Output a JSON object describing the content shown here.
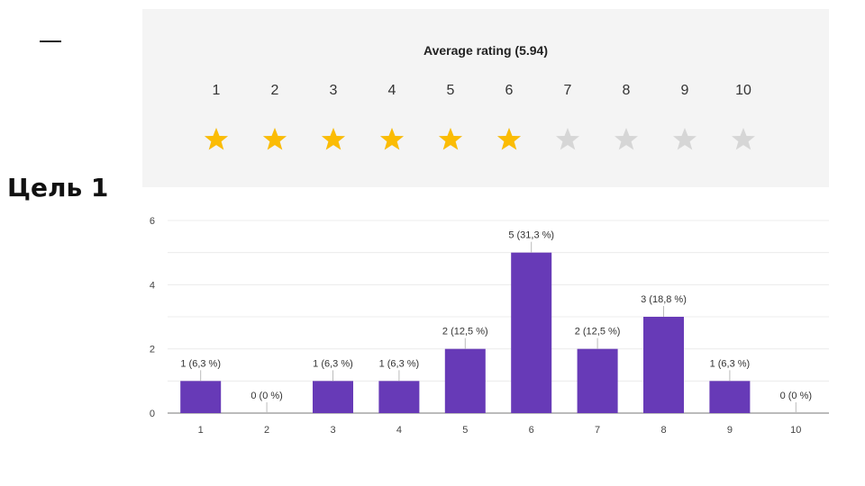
{
  "goal_title": "Цель 1",
  "rating": {
    "title": "Average rating (5.94)",
    "average": 5.94,
    "scale": [
      "1",
      "2",
      "3",
      "4",
      "5",
      "6",
      "7",
      "8",
      "9",
      "10"
    ],
    "star_icon": "star-icon",
    "filled_color": "#fbbc04",
    "empty_color": "#d6d6d6"
  },
  "chart_data": {
    "type": "bar",
    "categories": [
      "1",
      "2",
      "3",
      "4",
      "5",
      "6",
      "7",
      "8",
      "9",
      "10"
    ],
    "values": [
      1,
      0,
      1,
      1,
      2,
      5,
      2,
      3,
      1,
      0
    ],
    "data_labels": [
      "1 (6,3 %)",
      "0 (0 %)",
      "1 (6,3 %)",
      "1 (6,3 %)",
      "2 (12,5 %)",
      "5 (31,3 %)",
      "2 (12,5 %)",
      "3 (18,8 %)",
      "1 (6,3 %)",
      "0 (0 %)"
    ],
    "ylim": [
      0,
      6
    ],
    "yticks": [
      "0",
      "2",
      "4",
      "6"
    ],
    "grid": true,
    "bar_color": "#673ab7",
    "xlabel": "",
    "ylabel": ""
  }
}
